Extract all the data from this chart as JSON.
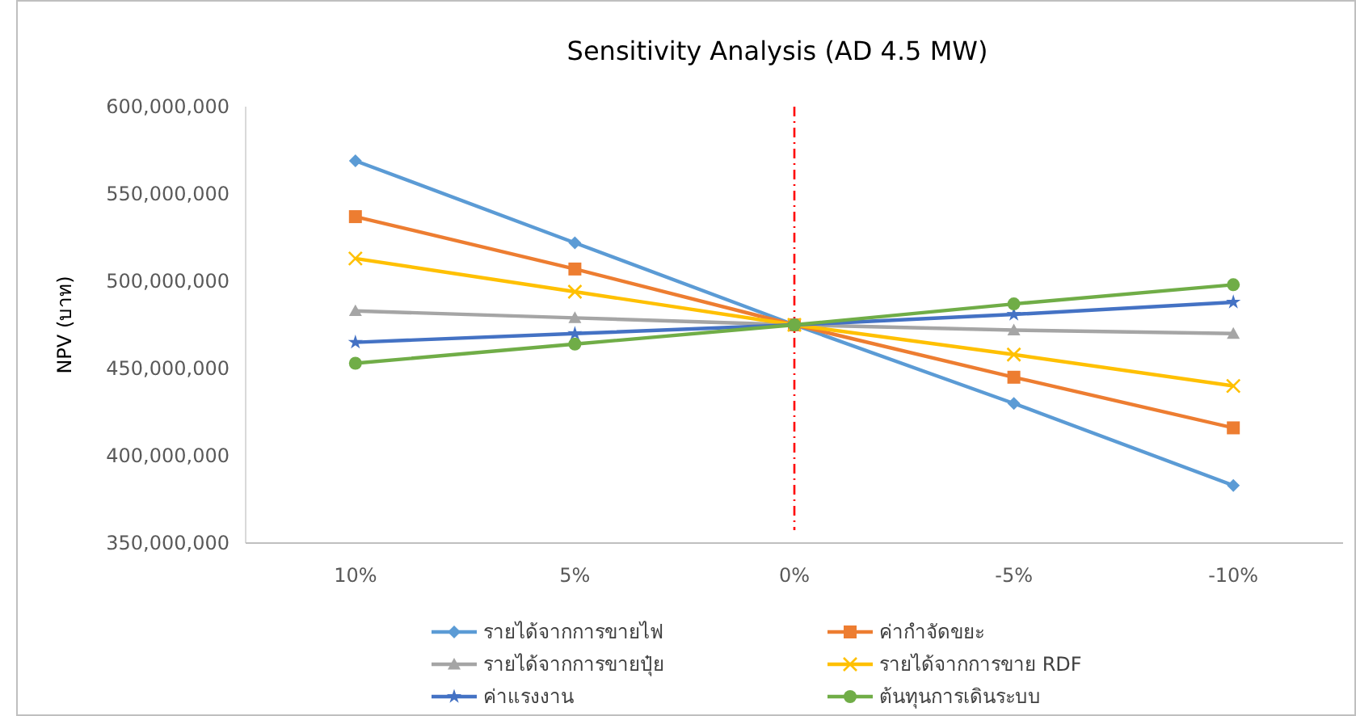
{
  "chart_data": {
    "type": "line",
    "title": "Sensitivity Analysis (AD 4.5 MW)",
    "ylabel": "NPV (บาท)",
    "categories": [
      "10%",
      "5%",
      "0%",
      "-5%",
      "-10%"
    ],
    "ylim": [
      350000000,
      600000000
    ],
    "yticks": [
      {
        "value": 350000000,
        "label": "350,000,000"
      },
      {
        "value": 400000000,
        "label": "400,000,000"
      },
      {
        "value": 450000000,
        "label": "450,000,000"
      },
      {
        "value": 500000000,
        "label": "500,000,000"
      },
      {
        "value": 550000000,
        "label": "550,000,000"
      },
      {
        "value": 600000000,
        "label": "600,000,000"
      }
    ],
    "grid": false,
    "legend": "bottom",
    "line_style": "solid",
    "series": [
      {
        "name": "รายได้จากการขายไฟ",
        "color": "#5b9bd5",
        "marker": "diamond",
        "values": [
          569000000,
          522000000,
          475000000,
          430000000,
          383000000
        ]
      },
      {
        "name": "ค่ากำจัดขยะ",
        "color": "#ed7d31",
        "marker": "square",
        "values": [
          537000000,
          507000000,
          475000000,
          445000000,
          416000000
        ]
      },
      {
        "name": "รายได้จากการขายปุ๋ย",
        "color": "#a5a5a5",
        "marker": "triangle",
        "values": [
          483000000,
          479000000,
          475000000,
          472000000,
          470000000
        ]
      },
      {
        "name": "รายได้จากการขาย RDF",
        "color": "#ffc000",
        "marker": "cross",
        "values": [
          513000000,
          494000000,
          475000000,
          458000000,
          440000000
        ]
      },
      {
        "name": "ค่าแรงงาน",
        "color": "#4472c4",
        "marker": "star",
        "values": [
          465000000,
          470000000,
          475000000,
          481000000,
          488000000
        ]
      },
      {
        "name": "ต้นทุนการเดินระบบ",
        "color": "#70ad47",
        "marker": "circle",
        "values": [
          453000000,
          464000000,
          475000000,
          487000000,
          498000000
        ]
      }
    ],
    "ref_lines": [
      {
        "axis": "x",
        "value": "0%",
        "color": "#ff0000",
        "line_style": "dashed"
      }
    ]
  }
}
